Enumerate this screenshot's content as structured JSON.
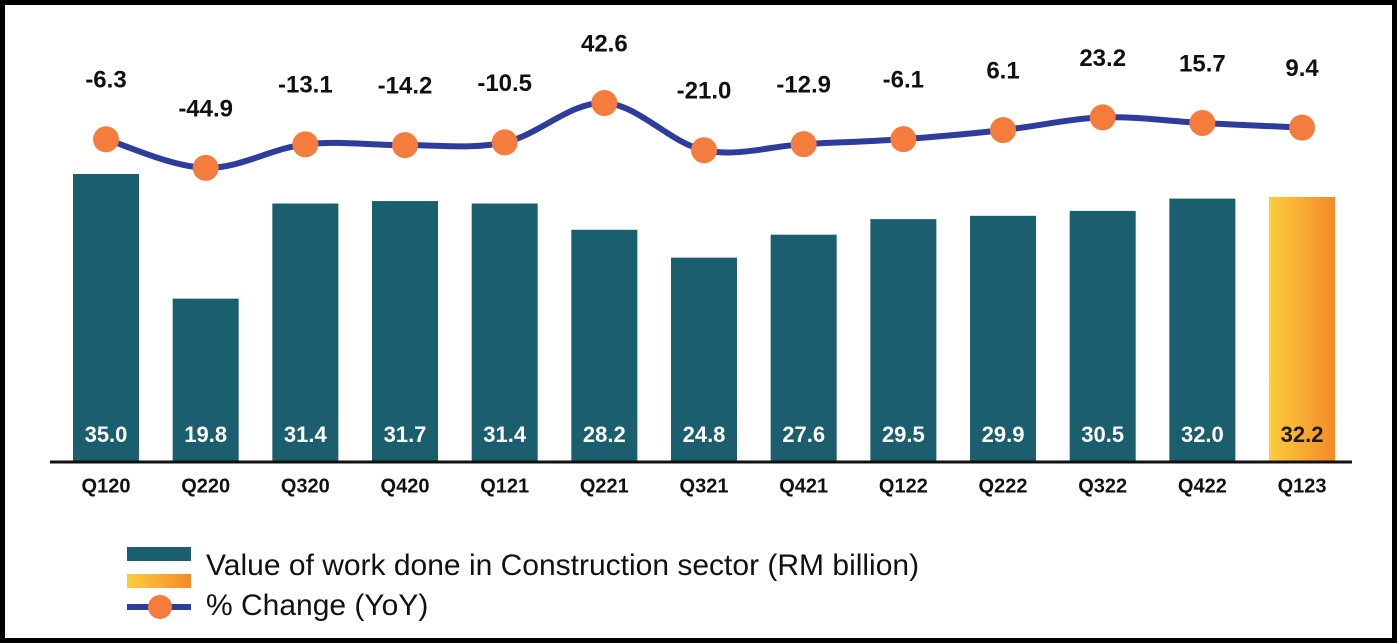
{
  "chart_data": {
    "type": "bar-line",
    "categories": [
      "Q120",
      "Q220",
      "Q320",
      "Q420",
      "Q121",
      "Q221",
      "Q321",
      "Q421",
      "Q122",
      "Q222",
      "Q322",
      "Q422",
      "Q123"
    ],
    "ylim": [
      0,
      55
    ],
    "y2lim": [
      -440,
      168
    ],
    "series": [
      {
        "name": "Value of work done in Construction sector (RM billion)",
        "type": "bar",
        "color": "#1b5e6d",
        "colors": [
          "#1b5e6d",
          "#1b5e6d",
          "#1b5e6d",
          "#1b5e6d",
          "#1b5e6d",
          "#1b5e6d",
          "#1b5e6d",
          "#1b5e6d",
          "#1b5e6d",
          "#1b5e6d",
          "#1b5e6d",
          "#1b5e6d",
          "#f48a2a"
        ],
        "values": [
          35.0,
          19.8,
          31.4,
          31.7,
          31.4,
          28.2,
          24.8,
          27.6,
          29.5,
          29.9,
          30.5,
          32.0,
          32.2
        ],
        "value_labels": [
          "35.0",
          "19.8",
          "31.4",
          "31.7",
          "31.4",
          "28.2",
          "24.8",
          "27.6",
          "29.5",
          "29.9",
          "30.5",
          "32.0",
          "32.2"
        ]
      },
      {
        "name": "% Change (YoY)",
        "type": "line",
        "axis": "y2",
        "color": "#2e3c9c",
        "marker_color": "#f47c3c",
        "values": [
          -6.3,
          -44.9,
          -13.1,
          -14.2,
          -10.5,
          42.6,
          -21.0,
          -12.9,
          -6.1,
          6.1,
          23.2,
          15.7,
          9.4
        ],
        "value_labels": [
          "-6.3",
          "-44.9",
          "-13.1",
          "-14.2",
          "-10.5",
          "42.6",
          "-21.0",
          "-12.9",
          "-6.1",
          "6.1",
          "23.2",
          "15.7",
          "9.4"
        ]
      }
    ]
  }
}
